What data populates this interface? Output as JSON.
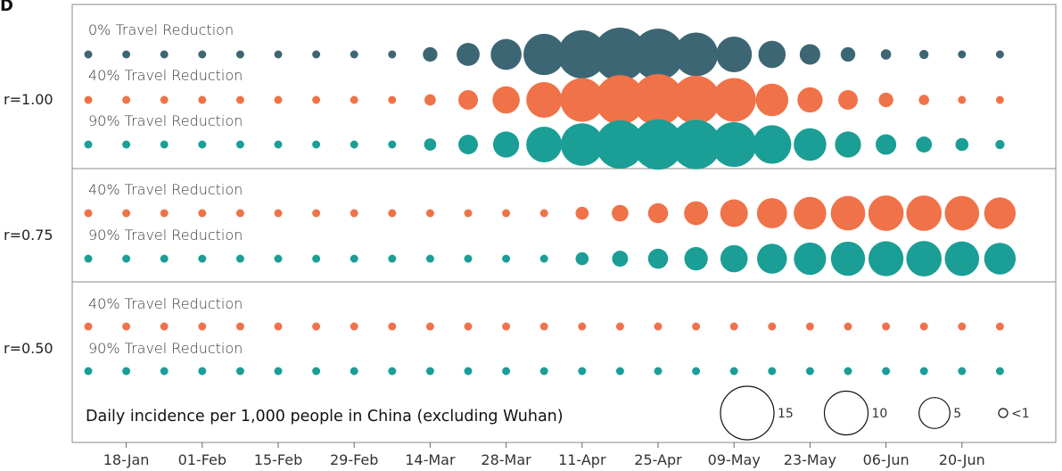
{
  "panel_letter": "D",
  "chart_data": {
    "type": "scatter",
    "title": "",
    "xlabel": "",
    "ylabel": "",
    "x_tick_labels": [
      "18-Jan",
      "01-Feb",
      "15-Feb",
      "29-Feb",
      "14-Mar",
      "28-Mar",
      "11-Apr",
      "25-Apr",
      "09-May",
      "23-May",
      "06-Jun",
      "20-Jun"
    ],
    "x": [
      "11-Jan",
      "18-Jan",
      "25-Jan",
      "01-Feb",
      "08-Feb",
      "15-Feb",
      "22-Feb",
      "29-Feb",
      "07-Mar",
      "14-Mar",
      "21-Mar",
      "28-Mar",
      "04-Apr",
      "11-Apr",
      "18-Apr",
      "25-Apr",
      "02-May",
      "09-May",
      "16-May",
      "23-May",
      "30-May",
      "06-Jun",
      "13-Jun",
      "20-Jun",
      "27-Jun"
    ],
    "colors": {
      "0% Travel Reduction": "#3d6674",
      "40% Travel Reduction": "#f07248",
      "90% Travel Reduction": "#1a9e96"
    },
    "panels": [
      {
        "label": "r=1.00",
        "series": [
          {
            "name": "0% Travel Reduction",
            "values": [
              0.3,
              0.3,
              0.3,
              0.3,
              0.3,
              0.3,
              0.3,
              0.3,
              0.3,
              1.0,
              2.5,
              4.5,
              8.0,
              11.0,
              13.5,
              12.5,
              9.0,
              6.0,
              3.5,
              2.0,
              1.0,
              0.5,
              0.4,
              0.3,
              0.3
            ]
          },
          {
            "name": "40% Travel Reduction",
            "values": [
              0.3,
              0.3,
              0.3,
              0.3,
              0.3,
              0.3,
              0.3,
              0.3,
              0.3,
              0.6,
              1.8,
              3.5,
              6.0,
              9.0,
              11.5,
              12.5,
              11.0,
              9.0,
              5.0,
              3.0,
              1.8,
              1.0,
              0.5,
              0.3,
              0.3
            ]
          },
          {
            "name": "90% Travel Reduction",
            "values": [
              0.3,
              0.3,
              0.3,
              0.3,
              0.3,
              0.3,
              0.3,
              0.3,
              0.3,
              0.7,
              1.8,
              3.2,
              6.0,
              8.5,
              11.0,
              12.0,
              11.5,
              9.5,
              7.0,
              5.0,
              3.2,
              2.0,
              1.2,
              0.8,
              0.4
            ]
          }
        ]
      },
      {
        "label": "r=0.75",
        "series": [
          {
            "name": "40% Travel Reduction",
            "values": [
              0.3,
              0.3,
              0.3,
              0.3,
              0.3,
              0.3,
              0.3,
              0.3,
              0.3,
              0.3,
              0.3,
              0.3,
              0.3,
              0.8,
              1.3,
              1.9,
              2.7,
              3.6,
              4.3,
              5.0,
              5.6,
              5.9,
              5.9,
              5.6,
              4.7
            ]
          },
          {
            "name": "90% Travel Reduction",
            "values": [
              0.3,
              0.3,
              0.3,
              0.3,
              0.3,
              0.3,
              0.3,
              0.3,
              0.3,
              0.3,
              0.3,
              0.3,
              0.3,
              0.8,
              1.2,
              1.9,
              2.6,
              3.5,
              4.2,
              4.9,
              5.5,
              5.8,
              5.9,
              5.6,
              4.7
            ]
          }
        ]
      },
      {
        "label": "r=0.50",
        "series": [
          {
            "name": "40% Travel Reduction",
            "values": [
              0.3,
              0.3,
              0.3,
              0.3,
              0.3,
              0.3,
              0.3,
              0.3,
              0.3,
              0.3,
              0.3,
              0.3,
              0.3,
              0.3,
              0.3,
              0.3,
              0.3,
              0.3,
              0.3,
              0.3,
              0.3,
              0.3,
              0.3,
              0.3,
              0.3
            ]
          },
          {
            "name": "90% Travel Reduction",
            "values": [
              0.3,
              0.3,
              0.3,
              0.3,
              0.3,
              0.3,
              0.3,
              0.3,
              0.3,
              0.3,
              0.3,
              0.3,
              0.3,
              0.3,
              0.3,
              0.3,
              0.3,
              0.3,
              0.3,
              0.3,
              0.3,
              0.3,
              0.3,
              0.3,
              0.3
            ]
          }
        ]
      }
    ],
    "legend": {
      "title": "Daily incidence per 1,000 people in China (excluding Wuhan)",
      "entries": [
        {
          "label": "15",
          "value": 15
        },
        {
          "label": "10",
          "value": 10
        },
        {
          "label": "5",
          "value": 5
        },
        {
          "label": "<1",
          "value": 1
        }
      ]
    },
    "grid": false
  }
}
